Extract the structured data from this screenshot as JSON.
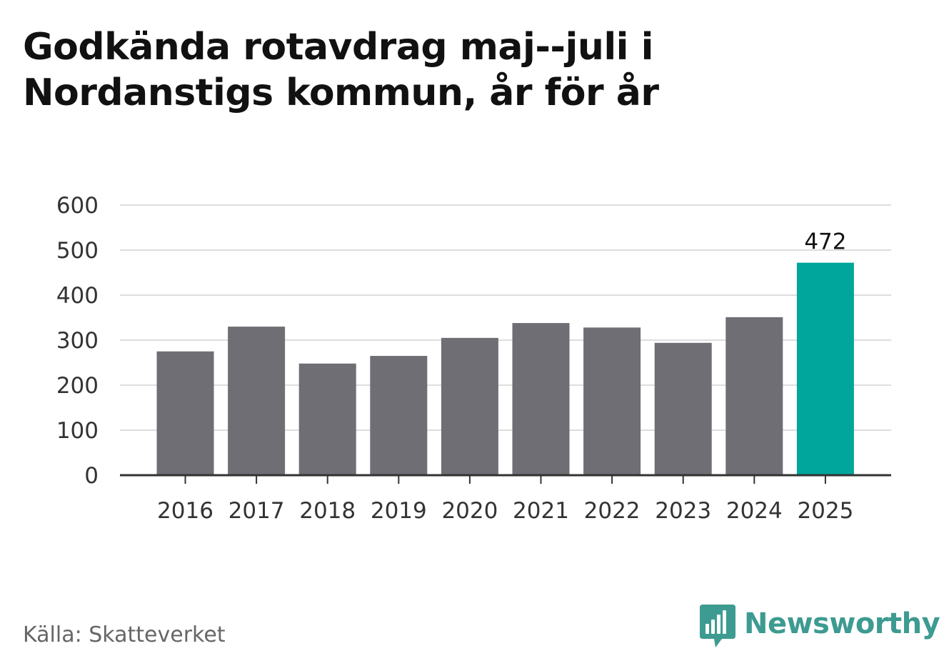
{
  "title": "Godkända rotavdrag maj--juli i Nordanstigs kommun, år för år",
  "source": "Källa: Skatteverket",
  "logo": {
    "name": "Newsworthy",
    "icon": "newsworthy-logo-icon",
    "color": "#3d9b91"
  },
  "colors": {
    "bar": "#6f6e74",
    "highlight": "#00a59b",
    "grid": "#dddddd",
    "axis": "#333333"
  },
  "chart_data": {
    "type": "bar",
    "title": "Godkända rotavdrag maj--juli i Nordanstigs kommun, år för år",
    "xlabel": "",
    "ylabel": "",
    "categories": [
      "2016",
      "2017",
      "2018",
      "2019",
      "2020",
      "2021",
      "2022",
      "2023",
      "2024",
      "2025"
    ],
    "values": [
      275,
      330,
      248,
      265,
      305,
      338,
      328,
      294,
      351,
      472
    ],
    "ylim": [
      0,
      600
    ],
    "yticks": [
      "0",
      "100",
      "200",
      "300",
      "400",
      "500",
      "600"
    ],
    "highlight_index": 9,
    "data_labels": [
      {
        "index": 9,
        "text": "472"
      }
    ],
    "grid": true,
    "legend": "none"
  }
}
